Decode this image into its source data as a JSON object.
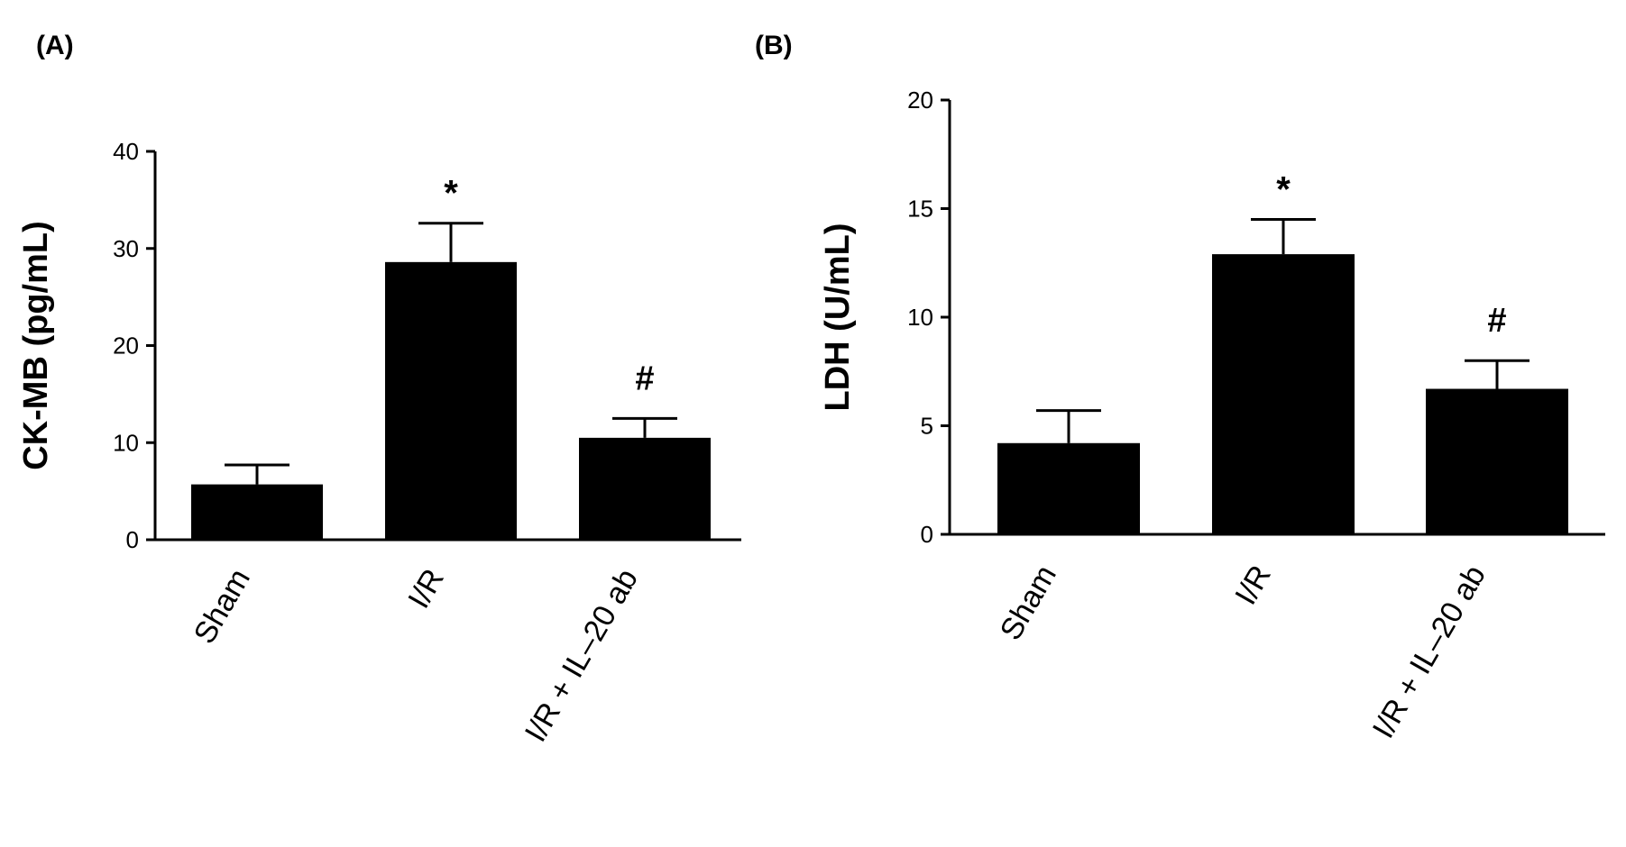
{
  "chart_data": [
    {
      "panel_label": "(A)",
      "type": "bar",
      "categories": [
        "Sham",
        "I/R",
        "I/R + IL–20 ab"
      ],
      "values": [
        5.7,
        28.6,
        10.5
      ],
      "error_bars": [
        2.0,
        4.0,
        2.0
      ],
      "annotations": [
        "",
        "*",
        "#"
      ],
      "ylabel": "CK-MB (pg/mL)",
      "ylim": [
        0,
        40
      ],
      "yticks": [
        0,
        10,
        20,
        30,
        40
      ],
      "grid": false,
      "bar_color": "#000000"
    },
    {
      "panel_label": "(B)",
      "type": "bar",
      "categories": [
        "Sham",
        "I/R",
        "I/R + IL–20 ab"
      ],
      "values": [
        4.2,
        12.9,
        6.7
      ],
      "error_bars": [
        1.5,
        1.6,
        1.3
      ],
      "annotations": [
        "",
        "*",
        "#"
      ],
      "ylabel": "LDH (U/mL)",
      "ylim": [
        0,
        20
      ],
      "yticks": [
        0,
        5,
        10,
        15,
        20
      ],
      "grid": false,
      "bar_color": "#000000"
    }
  ]
}
